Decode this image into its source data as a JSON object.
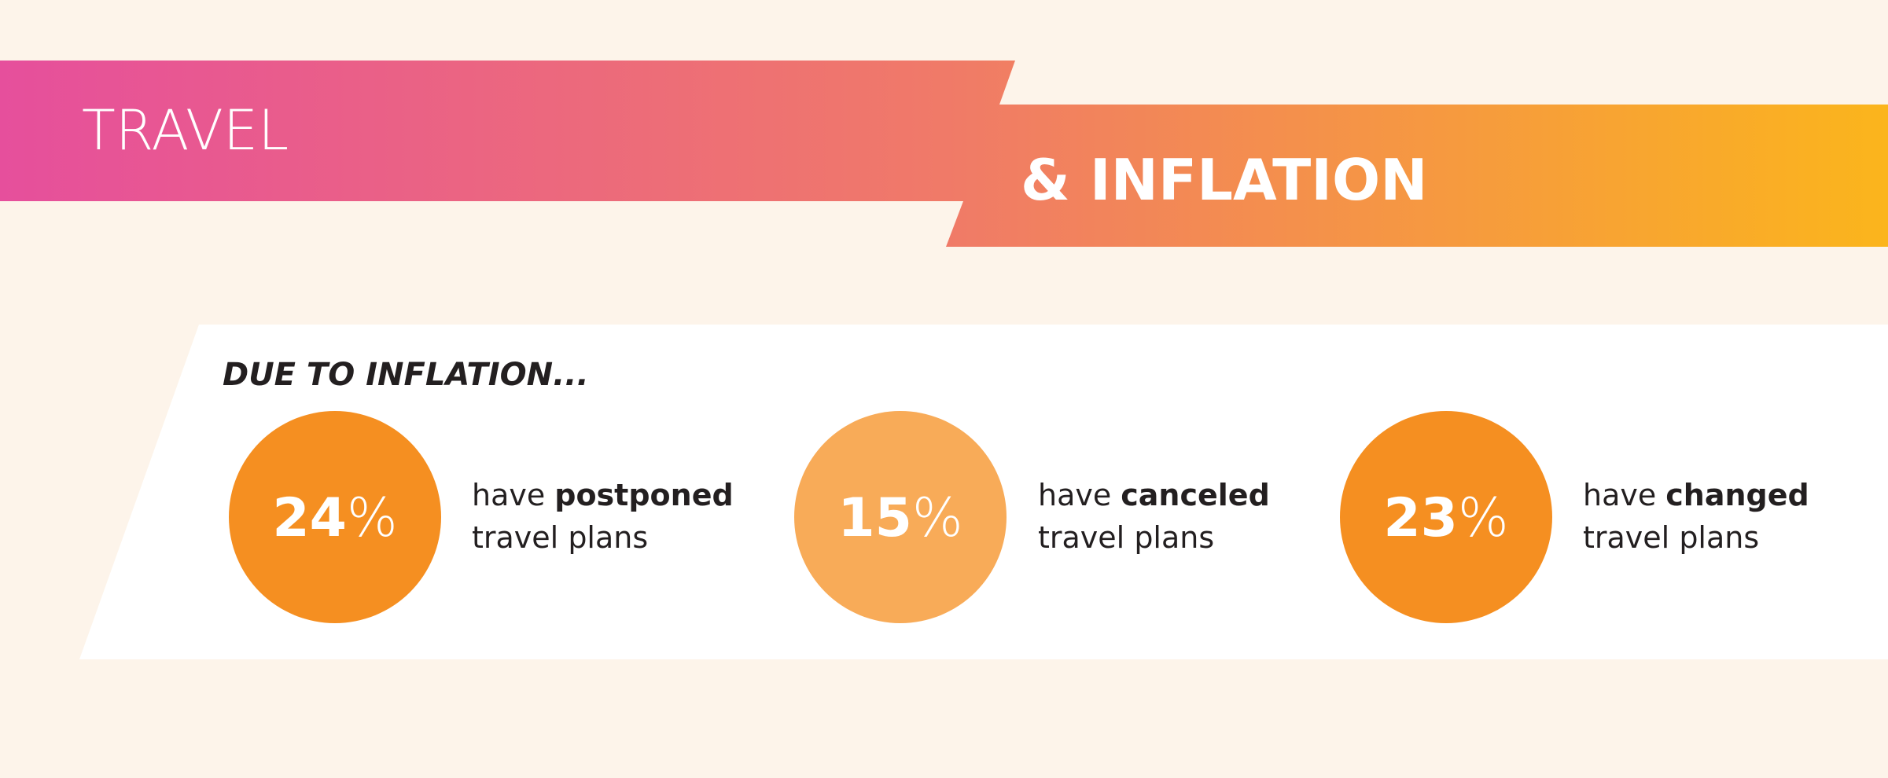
{
  "header": {
    "title": "TRAVEL",
    "subtitle": "& INFLATION"
  },
  "panel": {
    "heading": "DUE TO INFLATION...",
    "stats": [
      {
        "value": 24,
        "unit": "%",
        "color": "#f58f21",
        "text_before": "have",
        "emphasis": "postponed",
        "text_after": "travel plans"
      },
      {
        "value": 15,
        "unit": "%",
        "color": "#f8ab58",
        "text_before": "have",
        "emphasis": "canceled",
        "text_after": "travel plans"
      },
      {
        "value": 23,
        "unit": "%",
        "color": "#f58f21",
        "text_before": "have",
        "emphasis": "changed",
        "text_after": "travel plans"
      }
    ]
  }
}
